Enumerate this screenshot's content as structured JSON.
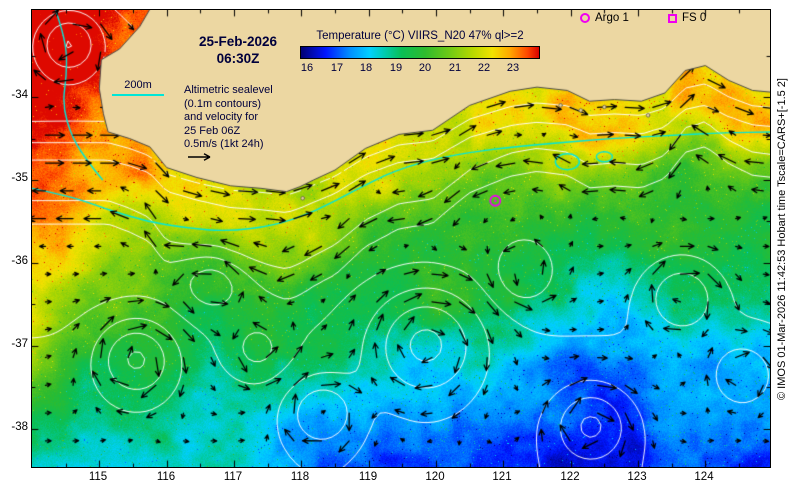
{
  "annotations": {
    "date_line1": "25-Feb-2026",
    "date_line2": "06:30Z",
    "bathy_label": "200m",
    "info_lines": [
      "Altimetric sealevel",
      "(0.1m contours)",
      "and velocity for",
      "25 Feb 06Z",
      "0.5m/s (1kt 24h)"
    ]
  },
  "colorbar": {
    "title": "Temperature (°C) VIIRS_N20 47% ql>=2",
    "tick_values": [
      16,
      17,
      18,
      19,
      20,
      21,
      22,
      23
    ],
    "value_range": [
      15.75,
      23.9
    ],
    "stops": [
      {
        "v": 15.75,
        "c": "#000073"
      },
      {
        "v": 16.6,
        "c": "#0016ff"
      },
      {
        "v": 17.4,
        "c": "#008cff"
      },
      {
        "v": 18.1,
        "c": "#00d0ff"
      },
      {
        "v": 18.6,
        "c": "#00ccb0"
      },
      {
        "v": 19.2,
        "c": "#0abf55"
      },
      {
        "v": 20.0,
        "c": "#2ebb2e"
      },
      {
        "v": 20.8,
        "c": "#6cc916"
      },
      {
        "v": 21.6,
        "c": "#b4d800"
      },
      {
        "v": 22.3,
        "c": "#f2e200"
      },
      {
        "v": 22.9,
        "c": "#ffa800"
      },
      {
        "v": 23.5,
        "c": "#ff4800"
      },
      {
        "v": 23.9,
        "c": "#d90000"
      }
    ]
  },
  "legend": {
    "argo_label": "Argo 1",
    "fs_label": "FS 0",
    "marker_color": "#f000f0"
  },
  "axes": {
    "x_ticks": [
      115,
      116,
      117,
      118,
      119,
      120,
      121,
      122,
      123,
      124
    ],
    "y_ticks": [
      -34,
      -35,
      -36,
      -37,
      -38
    ]
  },
  "markers": {
    "argo": {
      "lon": 120.88,
      "lat": -35.25
    }
  },
  "watermark": "© IMOS 01-Mar-2026 11:42:53 Hobart time Tscale=CARS+[-1.5 2]",
  "map_colors": {
    "land": "#ecd7a2",
    "coast": "#4a4a4a",
    "ssh_contour": "#ffffff",
    "bathy_contour": "#00e6d8",
    "arrow": "#000000",
    "annotation_text": "#00003c"
  }
}
